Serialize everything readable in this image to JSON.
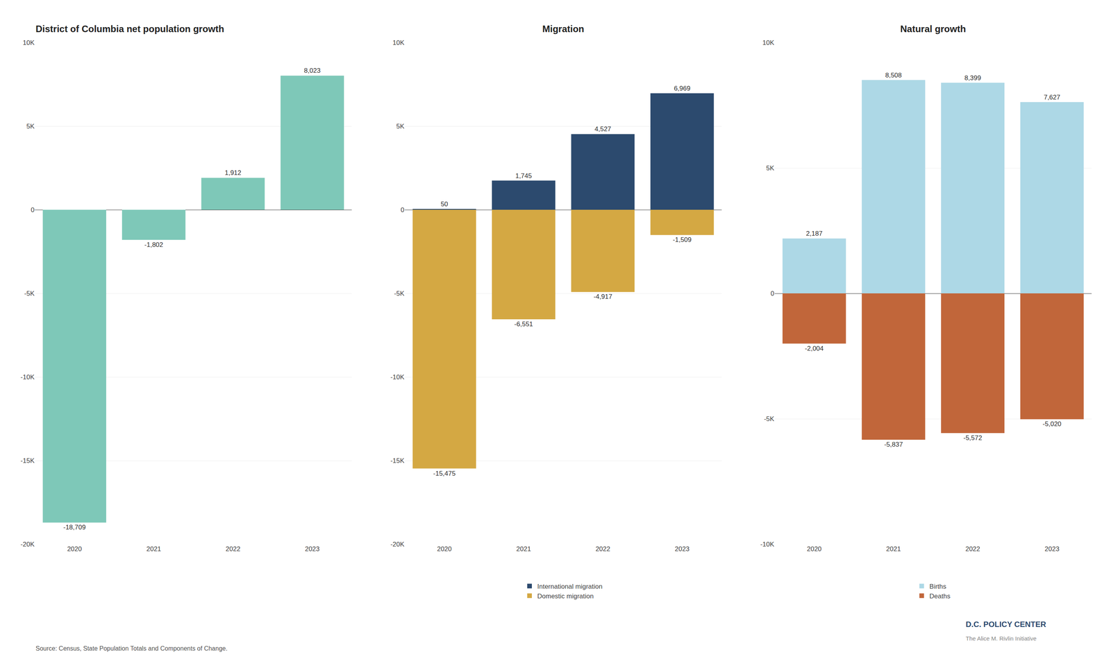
{
  "chart_data": [
    {
      "type": "bar",
      "title": "District of Columbia net population growth",
      "categories": [
        "2020",
        "2021",
        "2022",
        "2023"
      ],
      "values": [
        -18709,
        -1802,
        1912,
        8023
      ],
      "value_labels": [
        "-18,709",
        "-1,802",
        "1,912",
        "8,023"
      ],
      "color": "#7EC8B8",
      "ylim": [
        -20000,
        10000
      ],
      "yticks": [
        {
          "value": -20000,
          "label": "-20K"
        },
        {
          "value": -15000,
          "label": "-15K"
        },
        {
          "value": -10000,
          "label": "-10K"
        },
        {
          "value": -5000,
          "label": "-5K"
        },
        0,
        {
          "value": 5000,
          "label": "5K"
        },
        {
          "value": 10000,
          "label": "10K"
        }
      ],
      "grid": true,
      "data_labels": true
    },
    {
      "type": "bar",
      "title": "Migration",
      "categories": [
        "2020",
        "2021",
        "2022",
        "2023"
      ],
      "series": [
        {
          "name": "International migration",
          "color": "#2C4A6E",
          "values": [
            50,
            1745,
            4527,
            6969
          ],
          "value_labels": [
            "50",
            "1,745",
            "4,527",
            "6,969"
          ]
        },
        {
          "name": "Domestic migration",
          "color": "#D4A843",
          "values": [
            -15475,
            -6551,
            -4917,
            -1509
          ],
          "value_labels": [
            "-15,475",
            "-6,551",
            "-4,917",
            "-1,509"
          ]
        }
      ],
      "ylim": [
        -20000,
        10000
      ],
      "yticks": [
        {
          "value": -20000,
          "label": "-20K"
        },
        {
          "value": -15000,
          "label": "-15K"
        },
        {
          "value": -10000,
          "label": "-10K"
        },
        {
          "value": -5000,
          "label": "-5K"
        },
        0,
        {
          "value": 5000,
          "label": "5K"
        },
        {
          "value": 10000,
          "label": "10K"
        }
      ],
      "grid": true,
      "data_labels": true,
      "legend": "bottom"
    },
    {
      "type": "bar",
      "title": "Natural growth",
      "categories": [
        "2020",
        "2021",
        "2022",
        "2023"
      ],
      "series": [
        {
          "name": "Births",
          "color": "#ADD8E6",
          "values": [
            2187,
            8508,
            8399,
            7627
          ],
          "value_labels": [
            "2,187",
            "8,508",
            "8,399",
            "7,627"
          ]
        },
        {
          "name": "Deaths",
          "color": "#C1663A",
          "values": [
            -2004,
            -5837,
            -5572,
            -5020
          ],
          "value_labels": [
            "-2,004",
            "-5,837",
            "-5,572",
            "-5,020"
          ]
        }
      ],
      "ylim": [
        -10000,
        10000
      ],
      "yticks": [
        {
          "value": -10000,
          "label": "-10K"
        },
        {
          "value": -5000,
          "label": "-5K"
        },
        0,
        {
          "value": 5000,
          "label": "5K"
        },
        {
          "value": 10000,
          "label": "10K"
        }
      ],
      "grid": true,
      "data_labels": true,
      "legend": "bottom"
    }
  ],
  "annotations": [
    "Source: Census, State Population Totals and Components of Change.",
    "D.C. POLICY CENTER",
    "The Alice M. Rivlin Initiative"
  ]
}
